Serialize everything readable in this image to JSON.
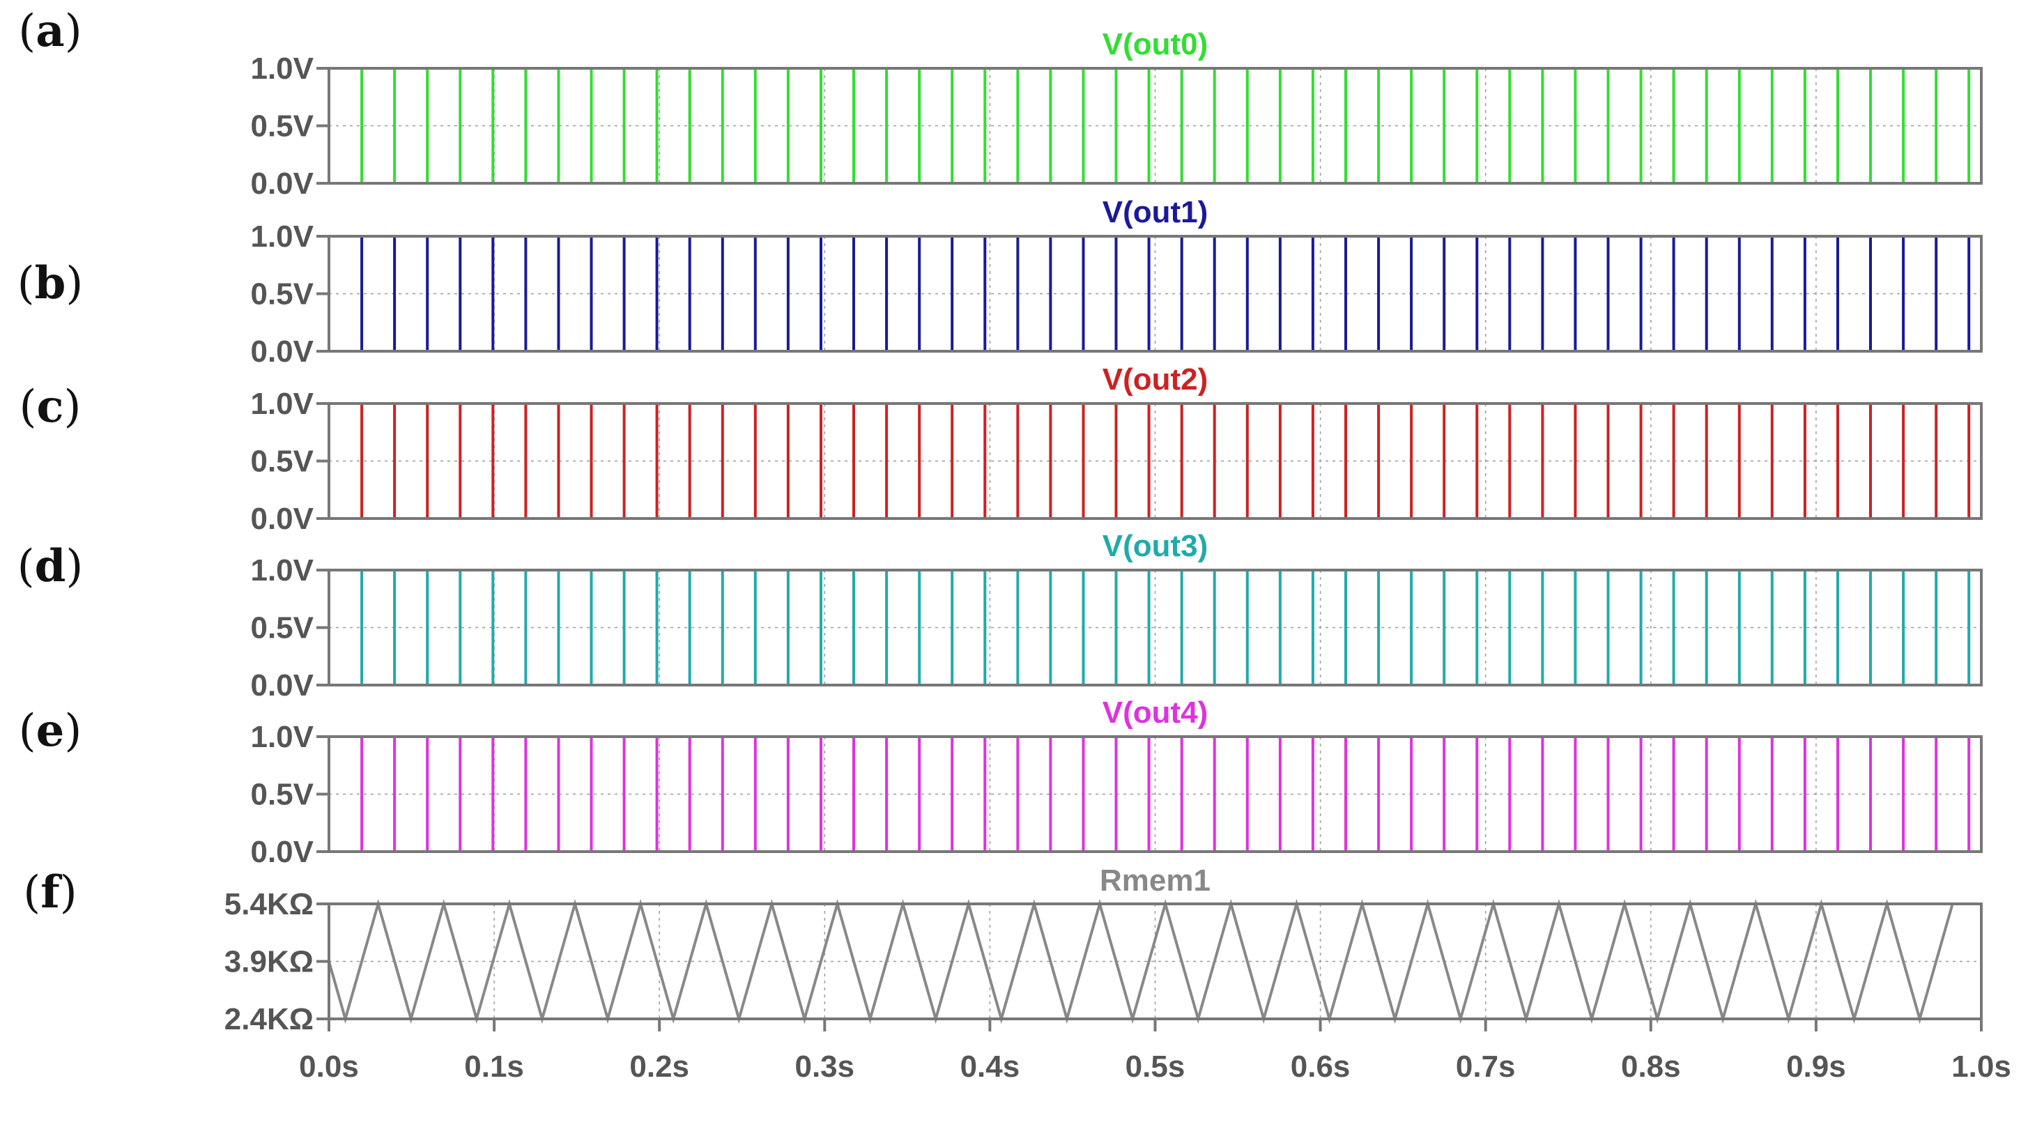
{
  "chart_data": {
    "type": "line",
    "x_axis": {
      "range": [
        0,
        1.0
      ],
      "unit": "s",
      "tick_values": [
        0.0,
        0.1,
        0.2,
        0.3,
        0.4,
        0.5,
        0.6,
        0.7,
        0.8,
        0.9,
        1.0
      ],
      "tick_labels": [
        "0.0s",
        "0.1s",
        "0.2s",
        "0.3s",
        "0.4s",
        "0.5s",
        "0.6s",
        "0.7s",
        "0.8s",
        "0.9s",
        "1.0s"
      ]
    },
    "grid": true,
    "panels": [
      {
        "letter": "a",
        "title": "V(out0)",
        "color": "#33dd33",
        "ylim": [
          0,
          1.0
        ],
        "y_ticks": [
          {
            "value": 1.0,
            "label": "1.0V"
          },
          {
            "value": 0.5,
            "label": "0.5V"
          },
          {
            "value": 0.0,
            "label": "0.0V"
          }
        ],
        "waveform": {
          "shape": "square",
          "period": 0.0397,
          "high_fraction": 0.5,
          "high": 1.0,
          "low": 0.0
        }
      },
      {
        "letter": "b",
        "title": "V(out1)",
        "color": "#1a1a99",
        "ylim": [
          0,
          1.0
        ],
        "y_ticks": [
          {
            "value": 1.0,
            "label": "1.0V"
          },
          {
            "value": 0.5,
            "label": "0.5V"
          },
          {
            "value": 0.0,
            "label": "0.0V"
          }
        ],
        "waveform": {
          "shape": "square",
          "period": 0.0397,
          "high_fraction": 0.5,
          "high": 1.0,
          "low": 0.0
        }
      },
      {
        "letter": "c",
        "title": "V(out2)",
        "color": "#cc2222",
        "ylim": [
          0,
          1.0
        ],
        "y_ticks": [
          {
            "value": 1.0,
            "label": "1.0V"
          },
          {
            "value": 0.5,
            "label": "0.5V"
          },
          {
            "value": 0.0,
            "label": "0.0V"
          }
        ],
        "waveform": {
          "shape": "square",
          "period": 0.0397,
          "high_fraction": 0.5,
          "high": 1.0,
          "low": 0.0
        }
      },
      {
        "letter": "d",
        "title": "V(out3)",
        "color": "#22aaaa",
        "ylim": [
          0,
          1.0
        ],
        "y_ticks": [
          {
            "value": 1.0,
            "label": "1.0V"
          },
          {
            "value": 0.5,
            "label": "0.5V"
          },
          {
            "value": 0.0,
            "label": "0.0V"
          }
        ],
        "waveform": {
          "shape": "square",
          "period": 0.0397,
          "high_fraction": 0.5,
          "high": 1.0,
          "low": 0.0
        }
      },
      {
        "letter": "e",
        "title": "V(out4)",
        "color": "#dd33dd",
        "ylim": [
          0,
          1.0
        ],
        "y_ticks": [
          {
            "value": 1.0,
            "label": "1.0V"
          },
          {
            "value": 0.5,
            "label": "0.5V"
          },
          {
            "value": 0.0,
            "label": "0.0V"
          }
        ],
        "waveform": {
          "shape": "square",
          "period": 0.0397,
          "high_fraction": 0.5,
          "high": 1.0,
          "low": 0.0
        }
      },
      {
        "letter": "f",
        "title": "Rmem1",
        "color": "#888888",
        "ylim": [
          2.4,
          5.4
        ],
        "y_ticks": [
          {
            "value": 5.4,
            "label": "5.4KΩ"
          },
          {
            "value": 3.9,
            "label": "3.9KΩ"
          },
          {
            "value": 2.4,
            "label": "2.4KΩ"
          }
        ],
        "waveform": {
          "shape": "triangle",
          "period": 0.0397,
          "high": 5.4,
          "low": 2.4,
          "start": 3.9
        }
      }
    ]
  }
}
